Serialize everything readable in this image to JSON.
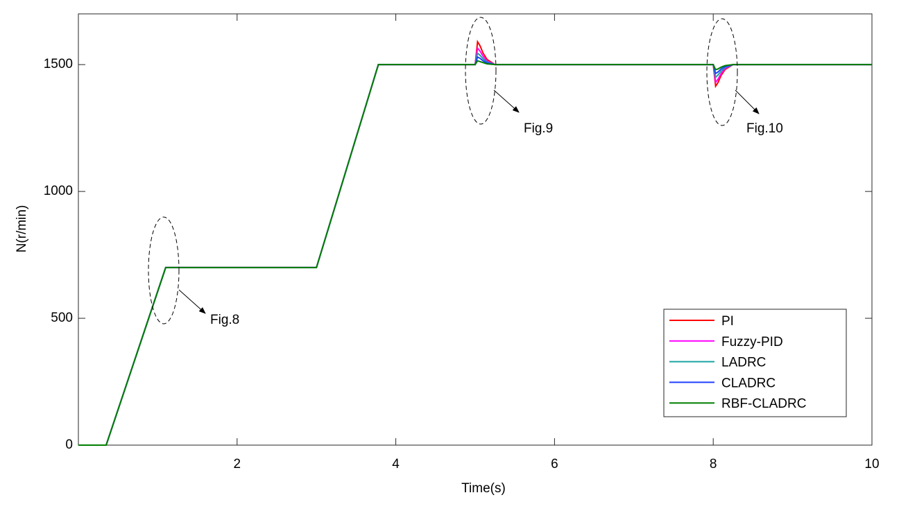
{
  "chart_data": {
    "type": "line",
    "x_label": "Time(s)",
    "y_label": "N(r/min)",
    "x": [
      0,
      0.35,
      1.1,
      3.0,
      3.78,
      5.0,
      5.03,
      5.06,
      5.1,
      5.15,
      5.25,
      8.0,
      8.03,
      8.06,
      8.1,
      8.15,
      8.25,
      10
    ],
    "series": [
      {
        "name": "PI",
        "color": "#ff0000",
        "values": [
          0,
          0,
          700,
          700,
          1500,
          1500,
          1590,
          1575,
          1545,
          1520,
          1500,
          1500,
          1415,
          1429,
          1458,
          1481,
          1500,
          1500
        ]
      },
      {
        "name": "Fuzzy-PID",
        "color": "#ff00ff",
        "values": [
          0,
          0,
          700,
          700,
          1500,
          1500,
          1565,
          1554,
          1533,
          1514,
          1500,
          1500,
          1430,
          1442,
          1465,
          1485,
          1500,
          1500
        ]
      },
      {
        "name": "LADRC",
        "color": "#1aa3a3",
        "values": [
          0,
          0,
          700,
          700,
          1500,
          1500,
          1545,
          1537,
          1523,
          1510,
          1500,
          1500,
          1450,
          1459,
          1475,
          1489,
          1500,
          1500
        ]
      },
      {
        "name": "CLADRC",
        "color": "#1f3fff",
        "values": [
          0,
          0,
          700,
          700,
          1500,
          1500,
          1530,
          1525,
          1515,
          1507,
          1500,
          1500,
          1465,
          1471,
          1483,
          1492,
          1500,
          1500
        ]
      },
      {
        "name": "RBF-CLADRC",
        "color": "#007f00",
        "values": [
          0,
          0,
          700,
          700,
          1500,
          1500,
          1515,
          1512,
          1508,
          1503,
          1500,
          1500,
          1480,
          1483,
          1490,
          1496,
          1500,
          1500
        ]
      }
    ],
    "xlim": [
      0,
      10
    ],
    "xticks": [
      2,
      4,
      6,
      8,
      10
    ],
    "ylim": [
      0,
      1700
    ],
    "yticks": [
      0,
      500,
      1000,
      1500
    ],
    "grid": false,
    "legend": "lower right",
    "annotations": [
      "Fig.8",
      "Fig.9",
      "Fig.10"
    ]
  }
}
